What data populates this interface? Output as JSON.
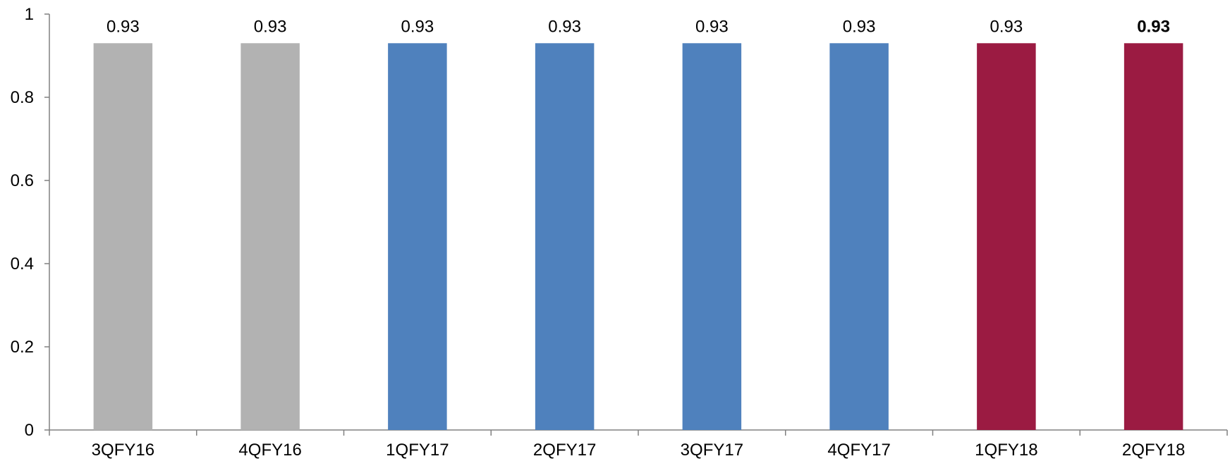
{
  "chart_data": {
    "type": "bar",
    "categories": [
      "3QFY16",
      "4QFY16",
      "1QFY17",
      "2QFY17",
      "3QFY17",
      "4QFY17",
      "1QFY18",
      "2QFY18"
    ],
    "values": [
      0.93,
      0.93,
      0.93,
      0.93,
      0.93,
      0.93,
      0.93,
      0.93
    ],
    "data_labels": [
      "0.93",
      "0.93",
      "0.93",
      "0.93",
      "0.93",
      "0.93",
      "0.93",
      "0.93"
    ],
    "bold_labels": [
      false,
      false,
      false,
      false,
      false,
      false,
      false,
      true
    ],
    "bar_colors": [
      "#B2B2B2",
      "#B2B2B2",
      "#4F81BD",
      "#4F81BD",
      "#4F81BD",
      "#4F81BD",
      "#9B1B42",
      "#9B1B42"
    ],
    "ylim": [
      0,
      1
    ],
    "yticks": [
      0,
      0.2,
      0.4,
      0.6,
      0.8,
      1
    ],
    "ytick_labels": [
      "0",
      "0.2",
      "0.4",
      "0.6",
      "0.8",
      "1"
    ],
    "title": "",
    "xlabel": "",
    "ylabel": "",
    "grid": false,
    "legend": "none"
  }
}
